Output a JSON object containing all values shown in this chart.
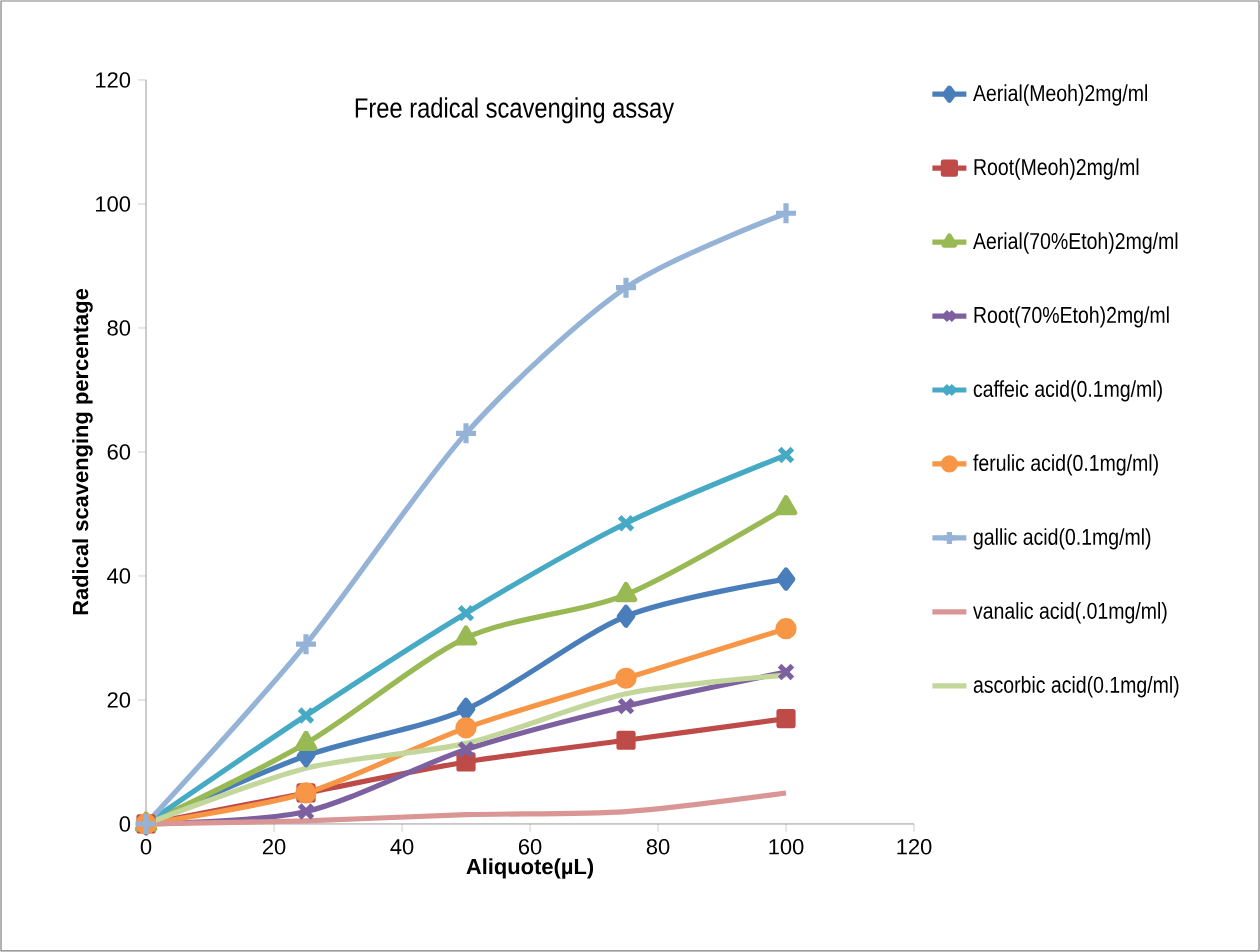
{
  "chart_data": {
    "type": "line",
    "title": "Free radical scavenging assay",
    "xlabel": "Aliquote(µL)",
    "ylabel": "Radical scavenging percentage",
    "x": [
      0,
      25,
      50,
      75,
      100
    ],
    "xlim": [
      0,
      120
    ],
    "xticks": [
      0,
      20,
      40,
      60,
      80,
      100,
      120
    ],
    "ylim": [
      0,
      120
    ],
    "yticks": [
      0,
      20,
      40,
      60,
      80,
      100,
      120
    ],
    "grid": false,
    "legend": "right",
    "line_style": "solid",
    "series": [
      {
        "name": "Aerial(Meoh)2mg/ml",
        "color": "#4a7ebb",
        "marker": "diamond",
        "values": [
          0,
          11,
          18.5,
          33.5,
          39.5
        ]
      },
      {
        "name": "Root(Meoh)2mg/ml",
        "color": "#be4b48",
        "marker": "square",
        "values": [
          0,
          5,
          10,
          13.5,
          17
        ]
      },
      {
        "name": "Aerial(70%Etoh)2mg/ml",
        "color": "#98b954",
        "marker": "triangle",
        "values": [
          0,
          13,
          30,
          37,
          51
        ]
      },
      {
        "name": "Root(70%Etoh)2mg/ml",
        "color": "#7d60a0",
        "marker": "cross",
        "values": [
          0,
          2,
          12,
          19,
          24.5
        ]
      },
      {
        "name": "caffeic acid(0.1mg/ml)",
        "color": "#46aac5",
        "marker": "cross",
        "values": [
          0,
          17.5,
          34,
          48.5,
          59.5
        ]
      },
      {
        "name": "ferulic acid(0.1mg/ml)",
        "color": "#f79646",
        "marker": "circle",
        "values": [
          0,
          5,
          15.5,
          23.5,
          31.5
        ]
      },
      {
        "name": "gallic acid(0.1mg/ml)",
        "color": "#95b3d7",
        "marker": "plus",
        "values": [
          0,
          29,
          63,
          86.5,
          98.5
        ]
      },
      {
        "name": "vanalic acid(.01mg/ml)",
        "color": "#d99694",
        "marker": "none",
        "values": [
          0,
          0.5,
          1.5,
          2,
          5
        ]
      },
      {
        "name": "ascorbic acid(0.1mg/ml)",
        "color": "#c3d69b",
        "marker": "none",
        "values": [
          0,
          9,
          13,
          21,
          24
        ]
      }
    ]
  }
}
